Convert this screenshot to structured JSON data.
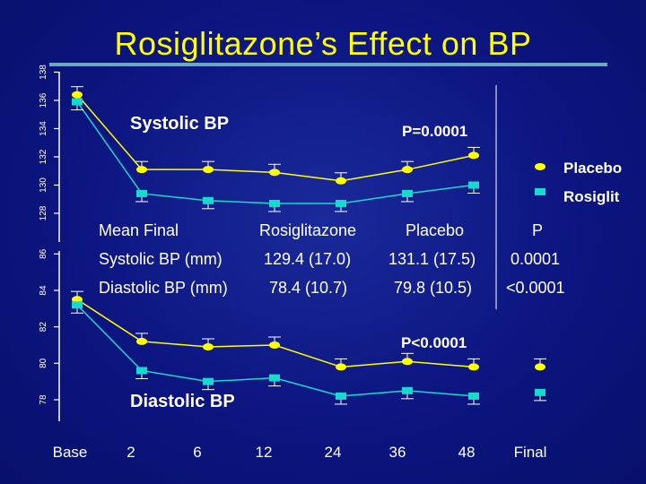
{
  "title": "Rosiglitazone’s Effect on BP",
  "legend": {
    "placebo": "Placebo",
    "rosiglit": "Rosiglit",
    "placebo_color": "#ffff00",
    "rosiglit_color": "#19d9cf"
  },
  "table": {
    "headers": [
      "Mean Final",
      "Rosiglitazone",
      "Placebo",
      "P"
    ],
    "rows": [
      [
        "Systolic BP (mm)",
        "129.4 (17.0)",
        "131.1 (17.5)",
        "0.0001"
      ],
      [
        "Diastolic BP (mm)",
        "78.4 (10.7)",
        "79.8 (10.5)",
        "<0.0001"
      ]
    ]
  },
  "x_tick_labels": [
    "Base",
    "2",
    "6",
    "12",
    "24",
    "36",
    "48",
    "Final"
  ],
  "chart_data": [
    {
      "type": "line",
      "title": "Systolic BP",
      "annotation": "P=0.0001",
      "ylim": [
        126,
        138
      ],
      "y_ticks": [
        128,
        130,
        132,
        134,
        136,
        138
      ],
      "x": [
        "Base",
        "2",
        "6",
        "12",
        "24",
        "36",
        "48",
        "Final"
      ],
      "series": [
        {
          "name": "Placebo",
          "values": [
            136.4,
            131.1,
            131.1,
            130.9,
            130.3,
            131.1,
            132.1,
            null
          ]
        },
        {
          "name": "Rosiglit",
          "values": [
            135.9,
            129.4,
            128.9,
            128.7,
            128.7,
            129.4,
            130.0,
            null
          ]
        }
      ]
    },
    {
      "type": "line",
      "title": "Diastolic BP",
      "annotation": "P<0.0001",
      "ylim": [
        77,
        86
      ],
      "y_ticks": [
        78,
        80,
        82,
        84,
        86
      ],
      "x": [
        "Base",
        "2",
        "6",
        "12",
        "24",
        "36",
        "48",
        "Final"
      ],
      "series": [
        {
          "name": "Placebo",
          "values": [
            83.5,
            81.2,
            80.9,
            81.0,
            79.8,
            80.1,
            79.8,
            79.8
          ]
        },
        {
          "name": "Rosiglit",
          "values": [
            83.2,
            79.6,
            79.0,
            79.2,
            78.2,
            78.5,
            78.2,
            78.4
          ]
        }
      ]
    }
  ]
}
